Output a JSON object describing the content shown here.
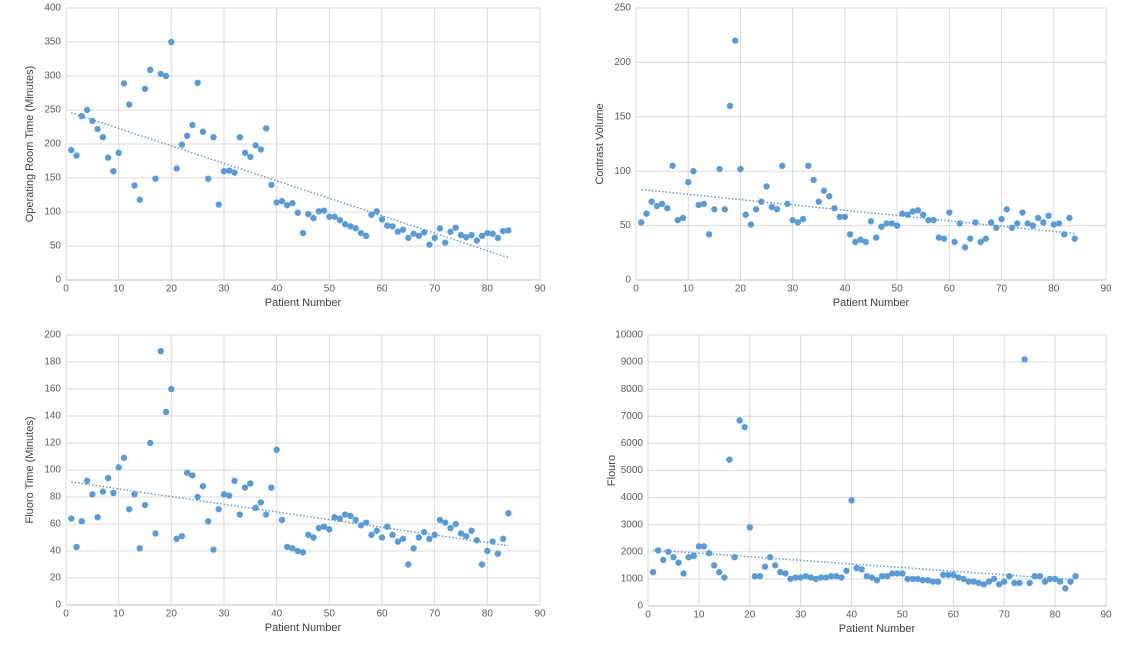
{
  "chart_data": [
    {
      "type": "scatter",
      "xlabel": "Patient Number",
      "ylabel": "Operating Room Time (Minutes)",
      "color": "#5b9bd5",
      "grid": true,
      "trendline": "linear",
      "x": [
        1,
        2,
        3,
        4,
        5,
        6,
        7,
        8,
        9,
        10,
        11,
        12,
        13,
        14,
        15,
        16,
        17,
        18,
        19,
        20,
        21,
        22,
        23,
        24,
        25,
        26,
        27,
        28,
        29,
        30,
        31,
        32,
        33,
        34,
        35,
        36,
        37,
        38,
        39,
        40,
        41,
        42,
        43,
        44,
        45,
        46,
        47,
        48,
        49,
        50,
        51,
        52,
        53,
        54,
        55,
        56,
        57,
        58,
        59,
        60,
        61,
        62,
        63,
        64,
        65,
        66,
        67,
        68,
        69,
        70,
        71,
        72,
        73,
        74,
        75,
        76,
        77,
        78,
        79,
        80,
        81,
        82,
        83,
        84
      ],
      "values": [
        191,
        183,
        241,
        250,
        234,
        222,
        210,
        180,
        160,
        187,
        289,
        258,
        139,
        118,
        281,
        309,
        149,
        303,
        300,
        350,
        164,
        199,
        212,
        228,
        290,
        218,
        149,
        210,
        111,
        160,
        161,
        158,
        210,
        187,
        181,
        198,
        192,
        223,
        140,
        114,
        116,
        110,
        113,
        99,
        69,
        97,
        91,
        101,
        102,
        93,
        93,
        88,
        82,
        79,
        76,
        69,
        65,
        96,
        101,
        89,
        80,
        79,
        71,
        74,
        62,
        68,
        65,
        70,
        52,
        62,
        76,
        55,
        71,
        77,
        66,
        63,
        66,
        58,
        65,
        69,
        68,
        62,
        72,
        73
      ],
      "xlim": [
        0,
        90
      ],
      "xticks": [
        0,
        10,
        20,
        30,
        40,
        50,
        60,
        70,
        80,
        90
      ],
      "ylim": [
        0,
        400
      ],
      "yticks": [
        0,
        50,
        100,
        150,
        200,
        250,
        300,
        350,
        400
      ]
    },
    {
      "type": "scatter",
      "xlabel": "Patient Number",
      "ylabel": "Contrast Volume",
      "color": "#5b9bd5",
      "grid": true,
      "trendline": "linear",
      "x": [
        1,
        2,
        3,
        4,
        5,
        6,
        7,
        8,
        9,
        10,
        11,
        12,
        13,
        14,
        15,
        16,
        17,
        18,
        19,
        20,
        21,
        22,
        23,
        24,
        25,
        26,
        27,
        28,
        29,
        30,
        31,
        32,
        33,
        34,
        35,
        36,
        37,
        38,
        39,
        40,
        41,
        42,
        43,
        44,
        45,
        46,
        47,
        48,
        49,
        50,
        51,
        52,
        53,
        54,
        55,
        56,
        57,
        58,
        59,
        60,
        61,
        62,
        63,
        64,
        65,
        66,
        67,
        68,
        69,
        70,
        71,
        72,
        73,
        74,
        75,
        76,
        77,
        78,
        79,
        80,
        81,
        82,
        83,
        84
      ],
      "values": [
        53,
        61,
        72,
        68,
        70,
        66,
        105,
        55,
        57,
        90,
        100,
        69,
        70,
        42,
        65,
        102,
        65,
        160,
        220,
        102,
        60,
        51,
        65,
        72,
        86,
        67,
        65,
        105,
        70,
        55,
        53,
        56,
        105,
        92,
        72,
        82,
        77,
        66,
        58,
        58,
        42,
        35,
        37,
        35,
        54,
        39,
        49,
        52,
        52,
        50,
        61,
        60,
        63,
        64,
        60,
        55,
        55,
        39,
        38,
        62,
        35,
        52,
        30,
        38,
        53,
        35,
        38,
        53,
        48,
        56,
        65,
        48,
        52,
        62,
        52,
        50,
        57,
        53,
        59,
        51,
        52,
        42,
        57,
        38
      ],
      "xlim": [
        0,
        90
      ],
      "xticks": [
        0,
        10,
        20,
        30,
        40,
        50,
        60,
        70,
        80,
        90
      ],
      "ylim": [
        0,
        250
      ],
      "yticks": [
        0,
        50,
        100,
        150,
        200,
        250
      ]
    },
    {
      "type": "scatter",
      "xlabel": "Patient Number",
      "ylabel": "Fluoro Time (Minutes)",
      "color": "#5b9bd5",
      "grid": true,
      "trendline": "linear",
      "x": [
        1,
        2,
        3,
        4,
        5,
        6,
        7,
        8,
        9,
        10,
        11,
        12,
        13,
        14,
        15,
        16,
        17,
        18,
        19,
        20,
        21,
        22,
        23,
        24,
        25,
        26,
        27,
        28,
        29,
        30,
        31,
        32,
        33,
        34,
        35,
        36,
        37,
        38,
        39,
        40,
        41,
        42,
        43,
        44,
        45,
        46,
        47,
        48,
        49,
        50,
        51,
        52,
        53,
        54,
        55,
        56,
        57,
        58,
        59,
        60,
        61,
        62,
        63,
        64,
        65,
        66,
        67,
        68,
        69,
        70,
        71,
        72,
        73,
        74,
        75,
        76,
        77,
        78,
        79,
        80,
        81,
        82,
        83,
        84
      ],
      "values": [
        64,
        43,
        62,
        92,
        82,
        65,
        84,
        94,
        83,
        102,
        109,
        71,
        82,
        42,
        74,
        120,
        53,
        188,
        143,
        160,
        49,
        51,
        98,
        96,
        80,
        88,
        62,
        41,
        71,
        82,
        81,
        92,
        67,
        87,
        90,
        72,
        76,
        67,
        87,
        115,
        63,
        43,
        42,
        40,
        39,
        52,
        50,
        57,
        58,
        56,
        65,
        64,
        67,
        66,
        63,
        59,
        61,
        52,
        55,
        50,
        58,
        52,
        47,
        49,
        30,
        42,
        50,
        54,
        49,
        52,
        63,
        61,
        57,
        60,
        53,
        51,
        55,
        48,
        30,
        40,
        47,
        38,
        49,
        68
      ],
      "xlim": [
        0,
        90
      ],
      "xticks": [
        0,
        10,
        20,
        30,
        40,
        50,
        60,
        70,
        80,
        90
      ],
      "ylim": [
        0,
        200
      ],
      "yticks": [
        0,
        20,
        40,
        60,
        80,
        100,
        120,
        140,
        160,
        180,
        200
      ]
    },
    {
      "type": "scatter",
      "xlabel": "Patient Number",
      "ylabel": "Flouro",
      "color": "#5b9bd5",
      "grid": true,
      "trendline": "linear",
      "x": [
        1,
        2,
        3,
        4,
        5,
        6,
        7,
        8,
        9,
        10,
        11,
        12,
        13,
        14,
        15,
        16,
        17,
        18,
        19,
        20,
        21,
        22,
        23,
        24,
        25,
        26,
        27,
        28,
        29,
        30,
        31,
        32,
        33,
        34,
        35,
        36,
        37,
        38,
        39,
        40,
        41,
        42,
        43,
        44,
        45,
        46,
        47,
        48,
        49,
        50,
        51,
        52,
        53,
        54,
        55,
        56,
        57,
        58,
        59,
        60,
        61,
        62,
        63,
        64,
        65,
        66,
        67,
        68,
        69,
        70,
        71,
        72,
        73,
        74,
        75,
        76,
        77,
        78,
        79,
        80,
        81,
        82,
        83,
        84
      ],
      "values": [
        1250,
        2050,
        1700,
        2000,
        1800,
        1600,
        1200,
        1800,
        1850,
        2200,
        2200,
        1950,
        1500,
        1250,
        1050,
        5400,
        1800,
        6850,
        6600,
        2900,
        1100,
        1100,
        1450,
        1800,
        1500,
        1250,
        1200,
        1000,
        1050,
        1050,
        1100,
        1050,
        1000,
        1050,
        1050,
        1100,
        1100,
        1050,
        1300,
        3900,
        1400,
        1350,
        1100,
        1050,
        950,
        1100,
        1100,
        1200,
        1200,
        1200,
        1000,
        1000,
        1000,
        950,
        950,
        900,
        900,
        1150,
        1150,
        1150,
        1050,
        1000,
        900,
        900,
        850,
        800,
        900,
        1000,
        800,
        900,
        1100,
        850,
        850,
        9100,
        850,
        1100,
        1100,
        900,
        1000,
        1000,
        900,
        650,
        900,
        1100
      ],
      "xlim": [
        0,
        90
      ],
      "xticks": [
        0,
        10,
        20,
        30,
        40,
        50,
        60,
        70,
        80,
        90
      ],
      "ylim": [
        0,
        10000
      ],
      "yticks": [
        0,
        1000,
        2000,
        3000,
        4000,
        5000,
        6000,
        7000,
        8000,
        9000,
        10000
      ]
    }
  ]
}
